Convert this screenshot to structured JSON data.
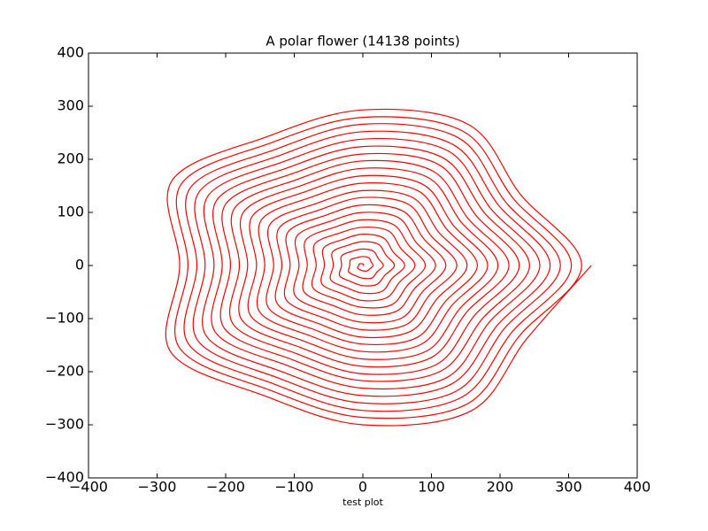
{
  "chart_data": {
    "type": "polar",
    "title": "A polar flower (14138 points)",
    "x_label": "test plot",
    "xlim": [
      -400,
      400
    ],
    "ylim": [
      -400,
      400
    ],
    "xticks": [
      {
        "value": -400,
        "label": "−400"
      },
      {
        "value": -300,
        "label": "−300"
      },
      {
        "value": -200,
        "label": "−200"
      },
      {
        "value": -100,
        "label": "−100"
      },
      0,
      100,
      200,
      300,
      400
    ],
    "yticks": [
      {
        "value": -400,
        "label": "−400"
      },
      {
        "value": -300,
        "label": "−300"
      },
      {
        "value": -200,
        "label": "−200"
      },
      {
        "value": -100,
        "label": "−100"
      },
      0,
      100,
      200,
      300,
      400
    ],
    "grid": false,
    "series": [
      {
        "color": "#ff0000",
        "theta": [
          0,
          30,
          60,
          90,
          120,
          150,
          180,
          210,
          240,
          270,
          300,
          330,
          360,
          390,
          420,
          450,
          480,
          510,
          540,
          570,
          600,
          630,
          660,
          690,
          720,
          750,
          780,
          810,
          840,
          870,
          900,
          930,
          960,
          990,
          1020,
          1050,
          1080,
          1110,
          1140,
          1170,
          1200,
          1230,
          1260,
          1290,
          1320,
          1350,
          1380,
          1410,
          1440,
          1470,
          1500,
          1530,
          1560,
          1590,
          1620,
          1650,
          1680,
          1710,
          1740,
          1770,
          1800,
          1830,
          1860,
          1890,
          1920,
          1950,
          1980,
          2010,
          2040,
          2070,
          2100,
          2130,
          2160,
          2190,
          2220,
          2250,
          2280,
          2310,
          2340,
          2370,
          2400,
          2430,
          2460,
          2490,
          2520,
          2550,
          2580,
          2610,
          2640,
          2670,
          2700,
          2730,
          2760,
          2790,
          2820,
          2850,
          2880,
          2910,
          2940,
          2970,
          3000,
          3030,
          3060,
          3090,
          3120,
          3150,
          3180,
          3210,
          3240,
          3270,
          3300,
          3330,
          3360,
          3390,
          3420,
          3450,
          3480,
          3510,
          3540,
          3570,
          3600,
          3630,
          3660,
          3690,
          3720,
          3750,
          3780,
          3810,
          3840,
          3870,
          3900,
          3930,
          3960,
          3990,
          4020,
          4050,
          4080,
          4110,
          4140,
          4170,
          4200,
          4230,
          4260,
          4290,
          4320,
          4350,
          4380,
          4410,
          4440,
          4470,
          4500,
          4530,
          4560,
          4590,
          4620,
          4650,
          4680,
          4710,
          4740,
          4770,
          4800,
          4830,
          4860,
          4890,
          4920,
          4950,
          4980,
          5010,
          5040,
          5070,
          5100,
          5130,
          5160,
          5190,
          5220,
          5250,
          5280,
          5310,
          5340,
          5370,
          5400,
          5430,
          5460,
          5490,
          5520,
          5550,
          5580,
          5610,
          5640,
          5670,
          5700,
          5730,
          5760,
          5790,
          5820,
          5850,
          5880,
          5910,
          5940,
          5970,
          6000,
          6030,
          6060,
          6090,
          6120,
          6150,
          6180,
          6210,
          6240,
          6270,
          6300,
          6330,
          6360,
          6390,
          6420,
          6450,
          6480,
          6510,
          6540,
          6570,
          6600,
          6630,
          6660,
          6690,
          6720,
          6750,
          6780,
          6810,
          6840,
          6870,
          6900,
          6930,
          6960,
          6990,
          7020,
          7050,
          7080,
          7110,
          7140,
          7170,
          7200,
          7230,
          7260,
          7290,
          7320,
          7350,
          7380,
          7410,
          7440,
          7470,
          7500,
          7530,
          7560,
          7590,
          7620,
          7650,
          7680,
          7710,
          7740,
          7770,
          7800,
          7830,
          7860,
          7890,
          7920
        ],
        "r": [
          0,
          1,
          2,
          3,
          4,
          6,
          6,
          9,
          9,
          10,
          12,
          12,
          15,
          14,
          17,
          17,
          17,
          21,
          19,
          24,
          22,
          24,
          27,
          24,
          30,
          26,
          31,
          31,
          31,
          36,
          31,
          39,
          35,
          38,
          41,
          37,
          46,
          39,
          46,
          45,
          44,
          51,
          43,
          54,
          48,
          52,
          56,
          49,
          61,
          51,
          60,
          59,
          57,
          66,
          56,
          69,
          61,
          66,
          70,
          62,
          76,
          64,
          75,
          72,
          70,
          81,
          68,
          84,
          74,
          79,
          85,
          75,
          91,
          77,
          89,
          86,
          83,
          96,
          81,
          99,
          87,
          93,
          99,
          87,
          106,
          89,
          104,
          100,
          96,
          111,
          93,
          114,
          101,
          107,
          114,
          100,
          121,
          102,
          118,
          114,
          109,
          126,
          106,
          129,
          114,
          121,
          128,
          112,
          137,
          114,
          133,
          128,
          122,
          141,
          118,
          144,
          127,
          135,
          142,
          125,
          152,
          127,
          147,
          141,
          135,
          156,
          130,
          159,
          140,
          148,
          157,
          138,
          167,
          140,
          162,
          155,
          149,
          171,
          143,
          174,
          153,
          162,
          171,
          150,
          182,
          152,
          176,
          169,
          162,
          186,
          155,
          189,
          166,
          176,
          186,
          163,
          197,
          165,
          191,
          183,
          175,
          201,
          168,
          204,
          179,
          190,
          200,
          175,
          213,
          177,
          205,
          197,
          188,
          216,
          180,
          219,
          192,
          204,
          215,
          188,
          228,
          190,
          220,
          210,
          201,
          231,
          193,
          234,
          205,
          217,
          229,
          201,
          243,
          203,
          234,
          224,
          214,
          246,
          205,
          249,
          218,
          231,
          244,
          213,
          258,
          215,
          249,
          238,
          227,
          261,
          217,
          264,
          232,
          245,
          258,
          226,
          273,
          228,
          263,
          252,
          240,
          276,
          230,
          279,
          245,
          259,
          273,
          238,
          288,
          240,
          278,
          266,
          253,
          291,
          242,
          294,
          258,
          273,
          287,
          251,
          304,
          253,
          292,
          279,
          267,
          306,
          255,
          309,
          271,
          286,
          302,
          264,
          319,
          266,
          307,
          293,
          280,
          321,
          267,
          324,
          284,
          300,
          316,
          276,
          333
        ]
      }
    ]
  }
}
